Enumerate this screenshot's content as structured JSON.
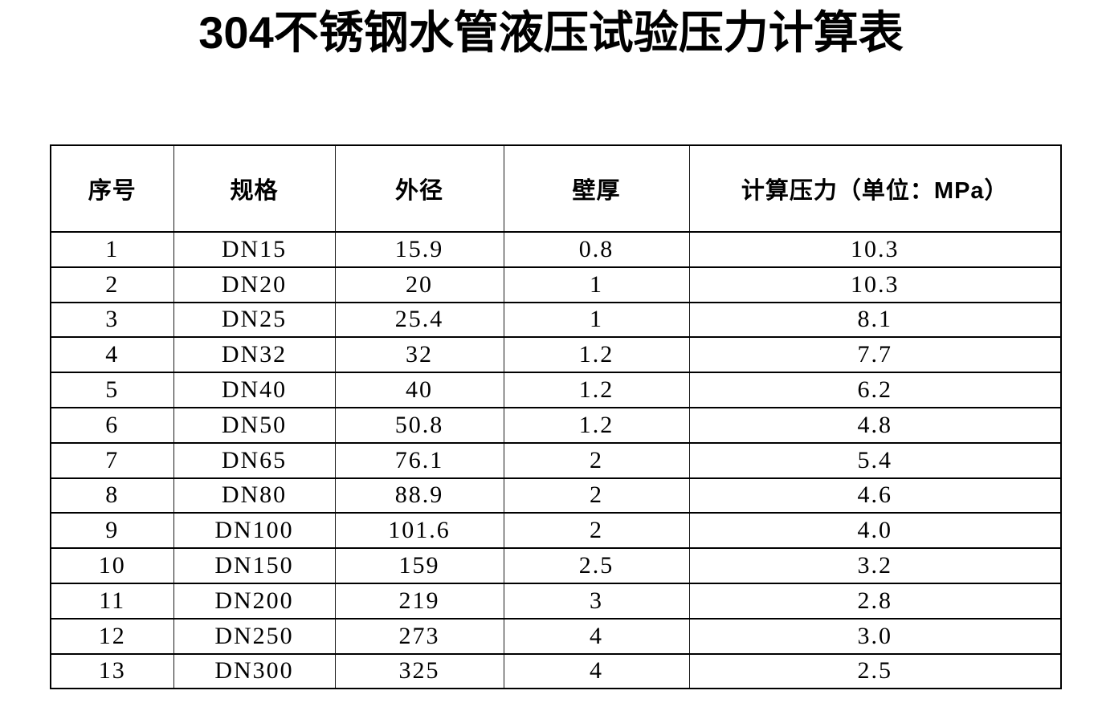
{
  "page": {
    "background_color": "#ffffff",
    "text_color": "#000000",
    "border_color": "#000000"
  },
  "title": "304不锈钢水管液压试验压力计算表",
  "table": {
    "columns": [
      {
        "key": "index",
        "label": "序号"
      },
      {
        "key": "spec",
        "label": "规格"
      },
      {
        "key": "outer_diameter",
        "label": "外径"
      },
      {
        "key": "wall_thickness",
        "label": "壁厚"
      },
      {
        "key": "pressure",
        "label": "计算压力（单位：MPa）"
      }
    ],
    "rows": [
      [
        "1",
        "DN15",
        "15.9",
        "0.8",
        "10.3"
      ],
      [
        "2",
        "DN20",
        "20",
        "1",
        "10.3"
      ],
      [
        "3",
        "DN25",
        "25.4",
        "1",
        "8.1"
      ],
      [
        "4",
        "DN32",
        "32",
        "1.2",
        "7.7"
      ],
      [
        "5",
        "DN40",
        "40",
        "1.2",
        "6.2"
      ],
      [
        "6",
        "DN50",
        "50.8",
        "1.2",
        "4.8"
      ],
      [
        "7",
        "DN65",
        "76.1",
        "2",
        "5.4"
      ],
      [
        "8",
        "DN80",
        "88.9",
        "2",
        "4.6"
      ],
      [
        "9",
        "DN100",
        "101.6",
        "2",
        "4.0"
      ],
      [
        "10",
        "DN150",
        "159",
        "2.5",
        "3.2"
      ],
      [
        "11",
        "DN200",
        "219",
        "3",
        "2.8"
      ],
      [
        "12",
        "DN250",
        "273",
        "4",
        "3.0"
      ],
      [
        "13",
        "DN300",
        "325",
        "4",
        "2.5"
      ]
    ]
  }
}
